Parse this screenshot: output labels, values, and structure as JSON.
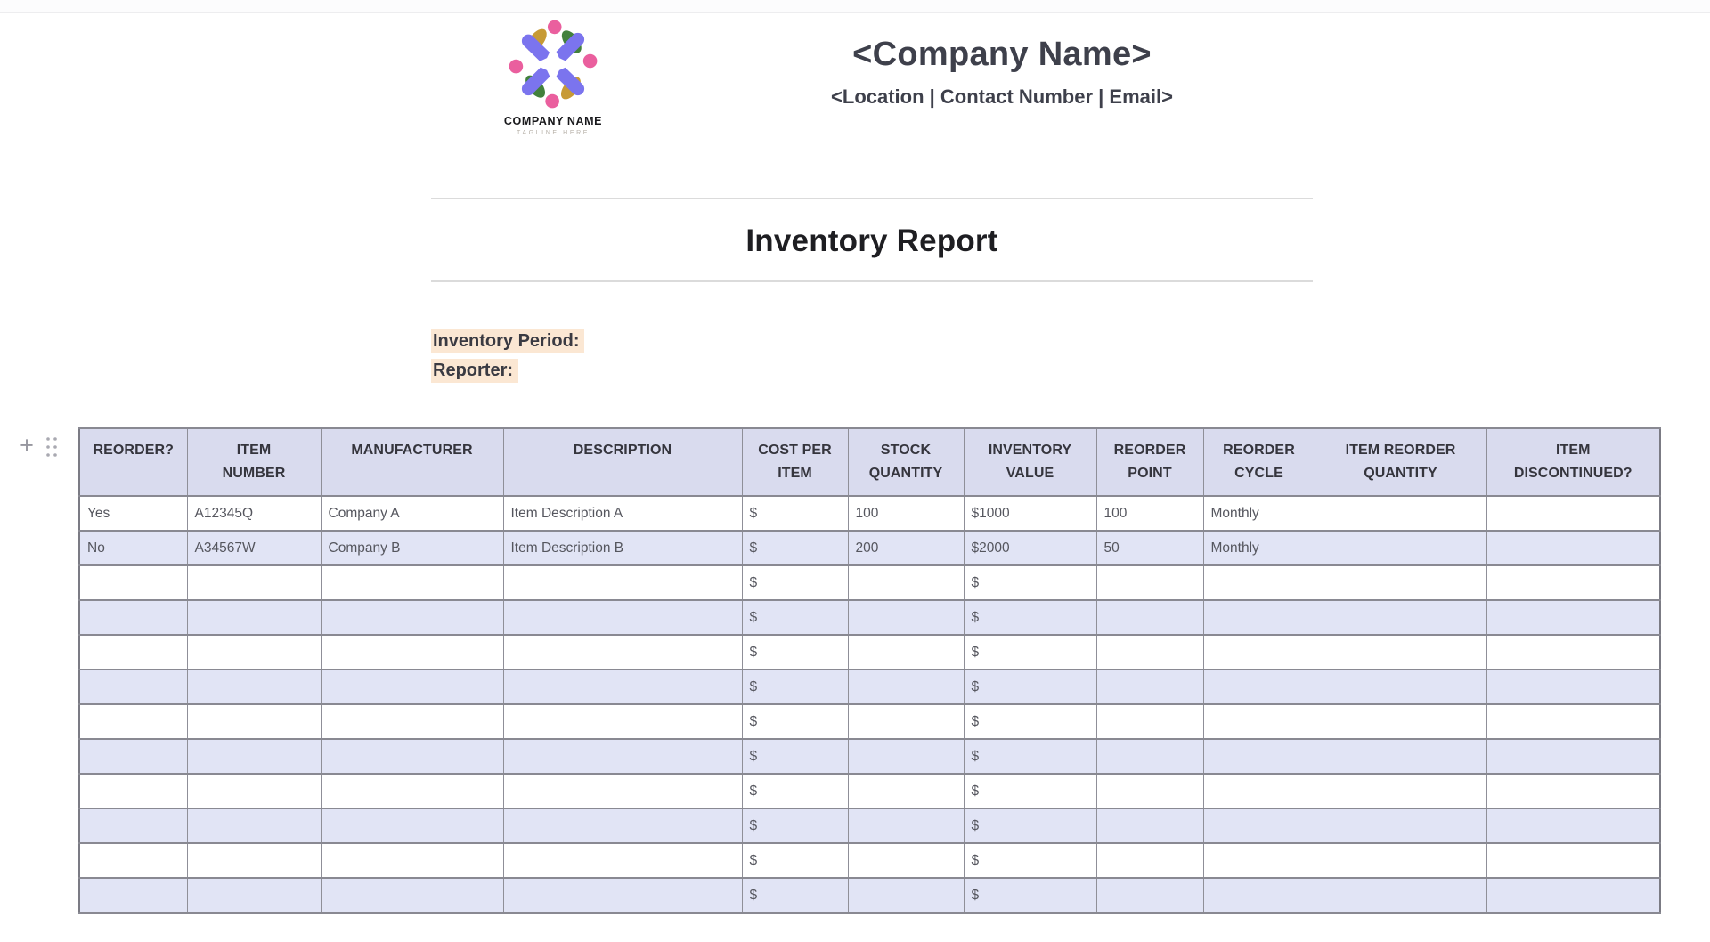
{
  "brand": {
    "logo_name_text": "COMPANY NAME",
    "logo_tagline_text": "TAGLINE HERE",
    "logo_colors": {
      "purple": "#7b74ee",
      "pink": "#ea5f9e",
      "green": "#42803c",
      "gold": "#c79a35"
    },
    "company_name": "<Company Name>",
    "contact_line": "<Location | Contact Number | Email>"
  },
  "document": {
    "title": "Inventory Report",
    "meta_labels": [
      "Inventory Period:",
      "Reporter:"
    ],
    "highlight_color": "#fbe7d3"
  },
  "editor": {
    "add_row_glyph": "+",
    "drag_handle_icon": "six-dot-drag-handle"
  },
  "table": {
    "header_bg": "#d9dbee",
    "stripe_bg": "#e1e4f5",
    "border_color": "#8f8f98",
    "columns": [
      {
        "id": "reorder",
        "label": "REORDER?"
      },
      {
        "id": "item-number",
        "label": "ITEM\nNUMBER"
      },
      {
        "id": "manufacturer",
        "label": "MANUFACTURER"
      },
      {
        "id": "description",
        "label": "DESCRIPTION"
      },
      {
        "id": "cost-per-item",
        "label": "COST PER\nITEM"
      },
      {
        "id": "stock-quantity",
        "label": "STOCK\nQUANTITY"
      },
      {
        "id": "inventory-value",
        "label": "INVENTORY\nVALUE"
      },
      {
        "id": "reorder-point",
        "label": "REORDER\nPOINT"
      },
      {
        "id": "reorder-cycle",
        "label": "REORDER\nCYCLE"
      },
      {
        "id": "item-reorder-quantity",
        "label": "ITEM REORDER\nQUANTITY"
      },
      {
        "id": "item-discontinued",
        "label": "ITEM\nDISCONTINUED?"
      }
    ],
    "rows": [
      [
        "Yes",
        "A12345Q",
        "Company A",
        "Item Description A",
        "$",
        "100",
        "$1000",
        "100",
        "Monthly",
        "",
        ""
      ],
      [
        "No",
        "A34567W",
        "Company B",
        "Item Description B",
        "$",
        "200",
        "$2000",
        "50",
        "Monthly",
        "",
        ""
      ],
      [
        "",
        "",
        "",
        "",
        "$",
        "",
        "$",
        "",
        "",
        "",
        ""
      ],
      [
        "",
        "",
        "",
        "",
        "$",
        "",
        "$",
        "",
        "",
        "",
        ""
      ],
      [
        "",
        "",
        "",
        "",
        "$",
        "",
        "$",
        "",
        "",
        "",
        ""
      ],
      [
        "",
        "",
        "",
        "",
        "$",
        "",
        "$",
        "",
        "",
        "",
        ""
      ],
      [
        "",
        "",
        "",
        "",
        "$",
        "",
        "$",
        "",
        "",
        "",
        ""
      ],
      [
        "",
        "",
        "",
        "",
        "$",
        "",
        "$",
        "",
        "",
        "",
        ""
      ],
      [
        "",
        "",
        "",
        "",
        "$",
        "",
        "$",
        "",
        "",
        "",
        ""
      ],
      [
        "",
        "",
        "",
        "",
        "$",
        "",
        "$",
        "",
        "",
        "",
        ""
      ],
      [
        "",
        "",
        "",
        "",
        "$",
        "",
        "$",
        "",
        "",
        "",
        ""
      ],
      [
        "",
        "",
        "",
        "",
        "$",
        "",
        "$",
        "",
        "",
        "",
        ""
      ]
    ]
  }
}
